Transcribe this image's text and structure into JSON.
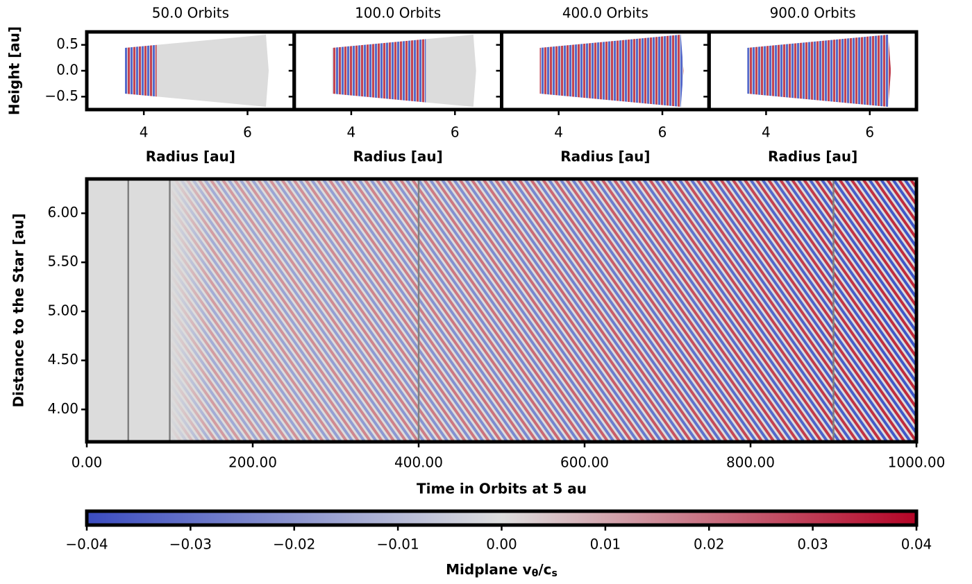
{
  "chart_data": [
    {
      "type": "heatmap",
      "title": "50.0 Orbits",
      "xlabel": "Radius [au]",
      "ylabel": "Height [au]",
      "xlim": [
        2.9,
        6.9
      ],
      "xticks": [
        4,
        6
      ],
      "ylim": [
        -0.75,
        0.75
      ],
      "yticks": [
        {
          "value": -0.5,
          "label": "−0.5"
        },
        {
          "value": 0,
          "label": "0.0"
        },
        0.5
      ]
    },
    {
      "type": "heatmap",
      "title": "100.0 Orbits",
      "xlabel": "Radius [au]",
      "xlim": [
        2.9,
        6.9
      ],
      "xticks": [
        4,
        6
      ],
      "ylim": [
        -0.75,
        0.75
      ],
      "yticks": [
        -0.5,
        0,
        0.5
      ]
    },
    {
      "type": "heatmap",
      "title": "400.0 Orbits",
      "xlabel": "Radius [au]",
      "xlim": [
        2.9,
        6.9
      ],
      "xticks": [
        4,
        6
      ],
      "ylim": [
        -0.75,
        0.75
      ],
      "yticks": [
        -0.5,
        0,
        0.5
      ]
    },
    {
      "type": "heatmap",
      "title": "900.0 Orbits",
      "xlabel": "Radius [au]",
      "xlim": [
        2.9,
        6.9
      ],
      "xticks": [
        4,
        6
      ],
      "ylim": [
        -0.75,
        0.75
      ],
      "yticks": [
        -0.5,
        0,
        0.5
      ]
    },
    {
      "type": "heatmap",
      "xlabel": "Time in Orbits at 5 au",
      "ylabel": "Distance to the Star [au]",
      "xlim": [
        0,
        1000
      ],
      "xticks": [
        {
          "value": 0,
          "label": "0.00"
        },
        {
          "value": 200,
          "label": "200.00"
        },
        {
          "value": 400,
          "label": "400.00"
        },
        {
          "value": 600,
          "label": "600.00"
        },
        {
          "value": 800,
          "label": "800.00"
        },
        {
          "value": 1000,
          "label": "1000.00"
        }
      ],
      "ylim": [
        3.67,
        6.35
      ],
      "yticks": [
        {
          "value": 4,
          "label": "4.00"
        },
        {
          "value": 4.5,
          "label": "4.50"
        },
        {
          "value": 5,
          "label": "5.00"
        },
        {
          "value": 5.5,
          "label": "5.50"
        },
        {
          "value": 6,
          "label": "6.00"
        }
      ],
      "markers": [
        50,
        100,
        400,
        900
      ],
      "marker_color": "#808080"
    },
    {
      "type": "colorbar",
      "label": [
        "Midplane v",
        "θ",
        "/c",
        "s"
      ],
      "xlim": [
        -0.04,
        0.04
      ],
      "xticks": [
        {
          "value": -0.04,
          "label": "−0.04"
        },
        {
          "value": -0.03,
          "label": "−0.03"
        },
        {
          "value": -0.02,
          "label": "−0.02"
        },
        {
          "value": -0.01,
          "label": "−0.01"
        },
        {
          "value": 0,
          "label": "0.00"
        },
        0.01,
        0.02,
        0.03,
        0.04
      ],
      "colors": [
        "#3b4cc0",
        "#dddddd",
        "#b40426"
      ]
    }
  ]
}
